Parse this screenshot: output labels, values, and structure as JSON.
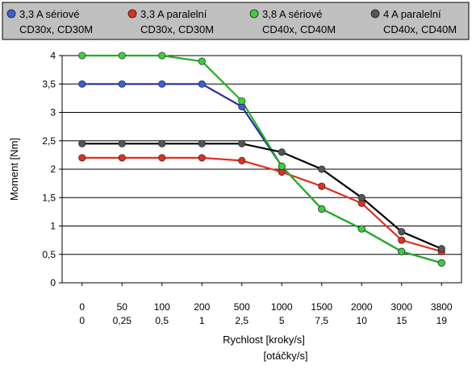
{
  "chart_data": {
    "type": "line",
    "x": [
      "0",
      "50",
      "100",
      "200",
      "500",
      "1000",
      "1500",
      "2000",
      "3000",
      "3800"
    ],
    "x2": [
      "0",
      "0,25",
      "0,5",
      "1",
      "2,5",
      "5",
      "7,5",
      "10",
      "15",
      "19"
    ],
    "xlabel": "Rychlost [kroky/s]",
    "xlabel2": "[otáčky/s]",
    "ylabel": "Moment [Nm]",
    "ylim": [
      0,
      4
    ],
    "yticks": [
      "0",
      "0,5",
      "1",
      "1,5",
      "2",
      "2,5",
      "3",
      "3,5",
      "4"
    ],
    "grid": "horizontal",
    "legend_placement": "top",
    "series": [
      {
        "name": "3,3 A sériové",
        "name2": "CD30x, CD30M",
        "color": "#2b2b9c",
        "marker": "#3a5fd8",
        "values": [
          3.5,
          3.5,
          3.5,
          3.5,
          3.1,
          2.05,
          1.3,
          0.95,
          0.55,
          0.35
        ]
      },
      {
        "name": "3,3 A paralelní",
        "name2": "CD30x, CD30M",
        "color": "#e03020",
        "marker": "#e03020",
        "values": [
          2.2,
          2.2,
          2.2,
          2.2,
          2.15,
          1.95,
          1.7,
          1.4,
          0.75,
          0.55
        ]
      },
      {
        "name": "3,8 A sériové",
        "name2": "CD40x, CD40M",
        "color": "#22b022",
        "marker": "#3ccf3c",
        "values": [
          4.0,
          4.0,
          4.0,
          3.9,
          3.2,
          2.05,
          1.3,
          0.95,
          0.55,
          0.35
        ]
      },
      {
        "name": "4 A paralelní",
        "name2": "CD40x, CD40M",
        "color": "#000000",
        "marker": "#555555",
        "values": [
          2.45,
          2.45,
          2.45,
          2.45,
          2.45,
          2.3,
          2.0,
          1.5,
          0.9,
          0.6
        ]
      }
    ]
  }
}
